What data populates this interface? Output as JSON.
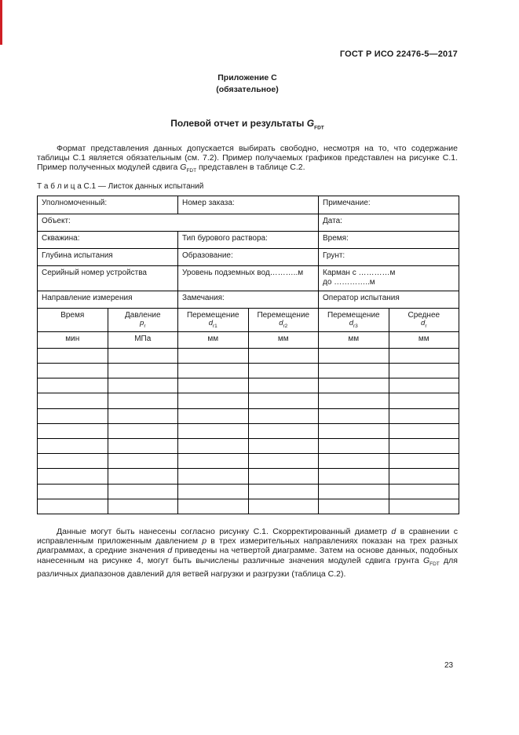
{
  "colors": {
    "page_background": "#ffffff",
    "text": "#1c1c1c",
    "table_border": "#000000",
    "edge_artifact_red": "#cf1f25"
  },
  "header": {
    "doc_code": "ГОСТ Р ИСО 22476-5—2017",
    "appendix": "Приложение С",
    "appendix_note": "(обязательное)"
  },
  "title": {
    "text": "Полевой отчет и результаты ",
    "symbol": "G",
    "symbol_sub": "FDT"
  },
  "intro": {
    "part1": "Формат представления данных допускается выбирать свободно, несмотря на то, что содержание таблицы С.1 является обязательным (см. 7.2). Пример получаемых графиков представлен на рисунке С.1. Пример полученных модулей сдвига ",
    "sym": "G",
    "sym_sub": "FDT",
    "part2": " представлен в таблице С.2."
  },
  "table": {
    "caption": "Т а б л и ц а  С.1 — Листок данных испытаний",
    "info_rows": [
      {
        "c1": "Уполномоченный:",
        "c2": "Номер заказа:",
        "c3": "Примечание:"
      },
      {
        "c1": "Объект:",
        "c3": "Дата:"
      },
      {
        "c1": "Скважина:",
        "c2": "Тип бурового раствора:",
        "c3": "Время:"
      },
      {
        "c1": "Глубина испытания",
        "c2": "Образование:",
        "c3": "Грунт:"
      },
      {
        "c1": "Серийный номер устройства",
        "c2": "Уровень подземных вод………..м",
        "c3": "Карман с …………м\nдо …………..м"
      },
      {
        "c1": "Направление измерения",
        "c2": "Замечания:",
        "c3": "Оператор испытания"
      }
    ],
    "header": [
      {
        "label": "Время",
        "sym": "",
        "sub": ""
      },
      {
        "label": "Давление",
        "sym": "p",
        "sub": "r"
      },
      {
        "label": "Перемещение",
        "sym": "d",
        "sub": "r1"
      },
      {
        "label": "Перемещение",
        "sym": "d",
        "sub": "r2"
      },
      {
        "label": "Перемещение",
        "sym": "d",
        "sub": "r3"
      },
      {
        "label": "Среднее",
        "sym": "d",
        "sub": "r"
      }
    ],
    "units": [
      "мин",
      "МПа",
      "мм",
      "мм",
      "мм",
      "мм"
    ],
    "empty_row_count": 11,
    "column_count": 6
  },
  "outro": {
    "part1": "Данные могут быть нанесены согласно рисунку С.1. Скорректированный диаметр ",
    "i1": "d",
    "part2": " в сравнении с исправленным приложенным давлением ",
    "i2": "p",
    "part3": " в трех измерительных направлениях показан на трех разных диаграммах, а средние значения ",
    "i3": "d",
    "part4": " приведены на четвертой диаграмме. Затем на основе данных, подобных нанесенным на рисунке 4, могут быть вычислены различные значения модулей сдвига грунта ",
    "sym": "G",
    "sym_sub": "FDT",
    "part5": " для различных диапазонов давлений для ветвей нагрузки и разгрузки (таблица С.2)."
  },
  "footer": {
    "page_number": "23"
  }
}
